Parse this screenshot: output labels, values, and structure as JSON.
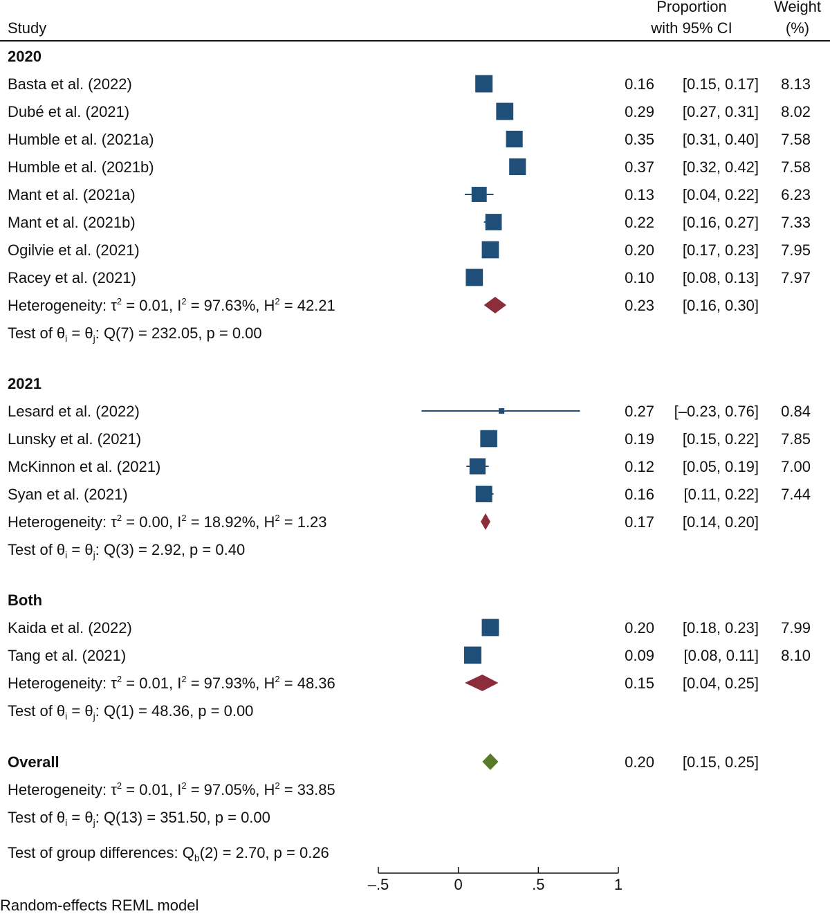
{
  "header": {
    "study": "Study",
    "proportion_line1": "Proportion",
    "proportion_line2": "with 95% CI",
    "weight_line1": "Weight",
    "weight_line2": "(%)"
  },
  "footer": {
    "group_diff_pre": "Test of group differences: Q",
    "group_diff_sub": "b",
    "group_diff_post": "(2) = 2.70, p = 0.26",
    "model": "Random-effects REML model"
  },
  "colors": {
    "study_marker": "#1f4e79",
    "subgroup_diamond": "#8b2d3a",
    "overall_diamond": "#5a7a2b",
    "text": "#111111"
  },
  "chart_data": {
    "type": "forest",
    "xlim": [
      -0.5,
      1.0
    ],
    "xticks": [
      -0.5,
      0,
      0.5,
      1
    ],
    "xtick_labels": [
      "–.5",
      "0",
      ".5",
      "1"
    ],
    "groups": [
      {
        "name": "2020",
        "studies": [
          {
            "study": "Basta et al. (2022)",
            "est": 0.16,
            "lo": 0.15,
            "hi": 0.17,
            "est_text": "0.16",
            "ci_text": "[0.15,  0.17]",
            "weight": 8.13,
            "weight_text": "8.13"
          },
          {
            "study": "Dubé et al. (2021)",
            "est": 0.29,
            "lo": 0.27,
            "hi": 0.31,
            "est_text": "0.29",
            "ci_text": "[0.27,  0.31]",
            "weight": 8.02,
            "weight_text": "8.02"
          },
          {
            "study": "Humble et al. (2021a)",
            "est": 0.35,
            "lo": 0.31,
            "hi": 0.4,
            "est_text": "0.35",
            "ci_text": "[0.31,  0.40]",
            "weight": 7.58,
            "weight_text": "7.58"
          },
          {
            "study": "Humble et al. (2021b)",
            "est": 0.37,
            "lo": 0.32,
            "hi": 0.42,
            "est_text": "0.37",
            "ci_text": "[0.32,  0.42]",
            "weight": 7.58,
            "weight_text": "7.58"
          },
          {
            "study": "Mant et al. (2021a)",
            "est": 0.13,
            "lo": 0.04,
            "hi": 0.22,
            "est_text": "0.13",
            "ci_text": "[0.04,  0.22]",
            "weight": 6.23,
            "weight_text": "6.23"
          },
          {
            "study": "Mant et al. (2021b)",
            "est": 0.22,
            "lo": 0.16,
            "hi": 0.27,
            "est_text": "0.22",
            "ci_text": "[0.16,  0.27]",
            "weight": 7.33,
            "weight_text": "7.33"
          },
          {
            "study": "Ogilvie et al. (2021)",
            "est": 0.2,
            "lo": 0.17,
            "hi": 0.23,
            "est_text": "0.20",
            "ci_text": "[0.17,  0.23]",
            "weight": 7.95,
            "weight_text": "7.95"
          },
          {
            "study": "Racey et al. (2021)",
            "est": 0.1,
            "lo": 0.08,
            "hi": 0.13,
            "est_text": "0.10",
            "ci_text": "[0.08,  0.13]",
            "weight": 7.97,
            "weight_text": "7.97"
          }
        ],
        "summary": {
          "est": 0.23,
          "lo": 0.16,
          "hi": 0.3,
          "est_text": "0.23",
          "ci_text": "[0.16,  0.30]"
        },
        "heterogeneity": {
          "tau2": "0.01",
          "i2": "97.63%",
          "h2": "42.21"
        },
        "test": {
          "k": "Q(7) = 232.05, p = 0.00"
        }
      },
      {
        "name": "2021",
        "studies": [
          {
            "study": "Lesard et al. (2022)",
            "est": 0.27,
            "lo": -0.23,
            "hi": 0.76,
            "est_text": "0.27",
            "ci_text": "[–0.23,  0.76]",
            "weight": 0.84,
            "weight_text": "0.84"
          },
          {
            "study": "Lunsky et al. (2021)",
            "est": 0.19,
            "lo": 0.15,
            "hi": 0.22,
            "est_text": "0.19",
            "ci_text": "[0.15,  0.22]",
            "weight": 7.85,
            "weight_text": "7.85"
          },
          {
            "study": "McKinnon et al. (2021)",
            "est": 0.12,
            "lo": 0.05,
            "hi": 0.19,
            "est_text": "0.12",
            "ci_text": "[0.05,  0.19]",
            "weight": 7.0,
            "weight_text": "7.00"
          },
          {
            "study": "Syan et al. (2021)",
            "est": 0.16,
            "lo": 0.11,
            "hi": 0.22,
            "est_text": "0.16",
            "ci_text": "[0.11,  0.22]",
            "weight": 7.44,
            "weight_text": "7.44"
          }
        ],
        "summary": {
          "est": 0.17,
          "lo": 0.14,
          "hi": 0.2,
          "est_text": "0.17",
          "ci_text": "[0.14,  0.20]"
        },
        "heterogeneity": {
          "tau2": "0.00",
          "i2": "18.92%",
          "h2": "1.23"
        },
        "test": {
          "k": "Q(3) = 2.92, p = 0.40"
        }
      },
      {
        "name": "Both",
        "studies": [
          {
            "study": "Kaida et al. (2022)",
            "est": 0.2,
            "lo": 0.18,
            "hi": 0.23,
            "est_text": "0.20",
            "ci_text": "[0.18,  0.23]",
            "weight": 7.99,
            "weight_text": "7.99"
          },
          {
            "study": "Tang et al. (2021)",
            "est": 0.09,
            "lo": 0.08,
            "hi": 0.11,
            "est_text": "0.09",
            "ci_text": "[0.08,  0.11]",
            "weight": 8.1,
            "weight_text": "8.10"
          }
        ],
        "summary": {
          "est": 0.15,
          "lo": 0.04,
          "hi": 0.25,
          "est_text": "0.15",
          "ci_text": "[0.04,  0.25]"
        },
        "heterogeneity": {
          "tau2": "0.01",
          "i2": "97.93%",
          "h2": "48.36"
        },
        "test": {
          "k": "Q(1) = 48.36, p = 0.00"
        }
      }
    ],
    "overall": {
      "label": "Overall",
      "est": 0.2,
      "lo": 0.15,
      "hi": 0.25,
      "est_text": "0.20",
      "ci_text": "[0.15,  0.25]",
      "heterogeneity": {
        "tau2": "0.01",
        "i2": "97.05%",
        "h2": "33.85"
      },
      "test": {
        "k": "Q(13) = 351.50, p = 0.00"
      }
    }
  }
}
